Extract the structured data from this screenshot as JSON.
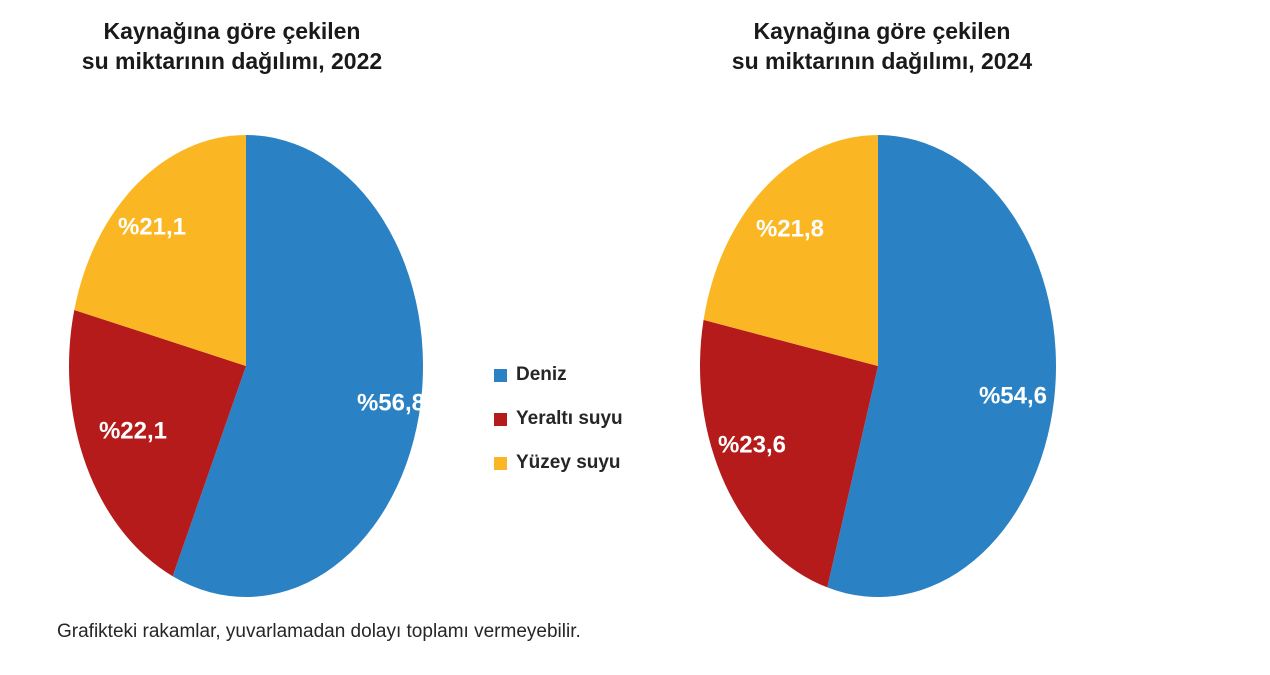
{
  "chart_data": [
    {
      "type": "pie",
      "title": "Kaynağına göre çekilen su miktarının dağılımı, 2022",
      "categories": [
        "Deniz",
        "Yeraltı suyu",
        "Yüzey suyu"
      ],
      "values": [
        56.8,
        22.1,
        21.1
      ],
      "unit": "percent",
      "value_labels": [
        "%56,8",
        "%22,1",
        "%21,1"
      ],
      "colors": [
        "#2A82C4",
        "#B51B1B",
        "#FBB723"
      ],
      "start_angle_deg": 0,
      "direction": "clockwise",
      "legend_position": "center-between-charts"
    },
    {
      "type": "pie",
      "title": "Kaynağına göre çekilen su miktarının dağılımı, 2024",
      "categories": [
        "Deniz",
        "Yeraltı suyu",
        "Yüzey suyu"
      ],
      "values": [
        54.6,
        23.6,
        21.8
      ],
      "unit": "percent",
      "value_labels": [
        "%54,6",
        "%23,6",
        "%21,8"
      ],
      "colors": [
        "#2A82C4",
        "#B51B1B",
        "#FBB723"
      ],
      "start_angle_deg": 0,
      "direction": "clockwise",
      "legend_position": "center-between-charts"
    }
  ],
  "charts": [
    {
      "title_line1": "Kaynağına göre çekilen",
      "title_line2": "su miktarının dağılımı, 2022",
      "slices": [
        {
          "name": "Deniz",
          "pct": 56.8,
          "label": "%56,8",
          "color": "#2A82C4"
        },
        {
          "name": "Yeraltı suyu",
          "pct": 22.1,
          "label": "%22,1",
          "color": "#B51B1B"
        },
        {
          "name": "Yüzey suyu",
          "pct": 21.1,
          "label": "%21,1",
          "color": "#FBB723"
        }
      ]
    },
    {
      "title_line1": "Kaynağına göre çekilen",
      "title_line2": "su miktarının dağılımı, 2024",
      "slices": [
        {
          "name": "Deniz",
          "pct": 54.6,
          "label": "%54,6",
          "color": "#2A82C4"
        },
        {
          "name": "Yeraltı suyu",
          "pct": 23.6,
          "label": "%23,6",
          "color": "#B51B1B"
        },
        {
          "name": "Yüzey suyu",
          "pct": 21.8,
          "label": "%21,8",
          "color": "#FBB723"
        }
      ]
    }
  ],
  "legend": {
    "items": [
      {
        "label": "Deniz",
        "color": "#2A82C4"
      },
      {
        "label": "Yeraltı suyu",
        "color": "#B51B1B"
      },
      {
        "label": "Yüzey suyu",
        "color": "#FBB723"
      }
    ]
  },
  "footnote": "Grafikteki rakamlar, yuvarlamadan dolayı toplamı vermeyebilir."
}
